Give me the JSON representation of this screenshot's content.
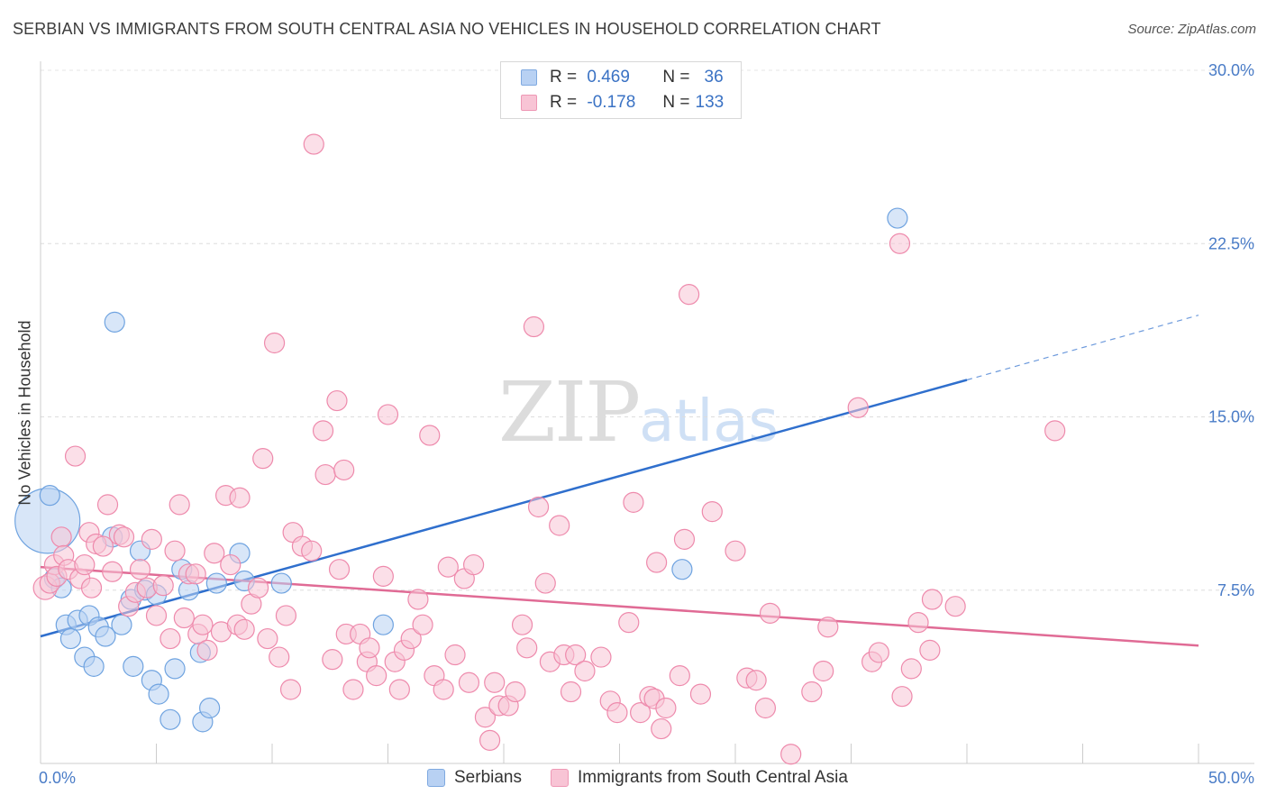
{
  "title": "SERBIAN VS IMMIGRANTS FROM SOUTH CENTRAL ASIA NO VEHICLES IN HOUSEHOLD CORRELATION CHART",
  "source": "Source: ZipAtlas.com",
  "watermark": {
    "zip": "ZIP",
    "atlas": "atlas"
  },
  "legend": {
    "rows": [
      {
        "r_label": "R =",
        "r_value": "0.469",
        "n_label": "N =",
        "n_value": "36",
        "color": "#a9c8f0"
      },
      {
        "r_label": "R =",
        "r_value": "-0.178",
        "n_label": "N =",
        "n_value": "133",
        "color": "#f7b6cb"
      }
    ]
  },
  "chart_data": {
    "type": "scatter",
    "ylabel": "No Vehicles in Household",
    "xlim": [
      0,
      50
    ],
    "ylim": [
      0,
      30
    ],
    "x_tick_labels": [
      "0.0%",
      "50.0%"
    ],
    "y_ticks": [
      7.5,
      15.0,
      22.5,
      30.0
    ],
    "y_tick_labels": [
      "7.5%",
      "15.0%",
      "22.5%",
      "30.0%"
    ],
    "grid": true,
    "legend_placement": "bottom",
    "series": [
      {
        "name": "Serbians",
        "color": "#6fa3e0",
        "fill": "#b8d1f3",
        "trend": {
          "x0": 0,
          "y0": 5.5,
          "x1": 40,
          "y1": 16.6,
          "dash_to_x": 50,
          "dash_to_y": 19.4,
          "color": "#2f6fcd"
        },
        "points": [
          [
            0.3,
            10.5
          ],
          [
            0.4,
            11.6
          ],
          [
            0.6,
            8.0
          ],
          [
            0.9,
            7.6
          ],
          [
            1.1,
            6.0
          ],
          [
            1.3,
            5.4
          ],
          [
            1.6,
            6.2
          ],
          [
            1.9,
            4.6
          ],
          [
            2.1,
            6.4
          ],
          [
            2.3,
            4.2
          ],
          [
            2.5,
            5.9
          ],
          [
            2.8,
            5.5
          ],
          [
            3.1,
            9.8
          ],
          [
            3.2,
            19.1
          ],
          [
            3.5,
            6.0
          ],
          [
            3.9,
            7.1
          ],
          [
            4.0,
            4.2
          ],
          [
            4.3,
            9.2
          ],
          [
            4.5,
            7.5
          ],
          [
            4.8,
            3.6
          ],
          [
            5.0,
            7.3
          ],
          [
            5.1,
            3.0
          ],
          [
            5.6,
            1.9
          ],
          [
            5.8,
            4.1
          ],
          [
            6.1,
            8.4
          ],
          [
            6.4,
            7.5
          ],
          [
            6.9,
            4.8
          ],
          [
            7.0,
            1.8
          ],
          [
            7.3,
            2.4
          ],
          [
            7.6,
            7.8
          ],
          [
            8.6,
            9.1
          ],
          [
            8.8,
            7.9
          ],
          [
            10.4,
            7.8
          ],
          [
            14.8,
            6.0
          ],
          [
            27.7,
            8.4
          ],
          [
            37.0,
            23.6
          ]
        ],
        "sizes": [
          36,
          11,
          11,
          11,
          11,
          11,
          11,
          11,
          11,
          11,
          11,
          11,
          11,
          11,
          11,
          11,
          11,
          11,
          11,
          11,
          11,
          11,
          11,
          11,
          11,
          11,
          11,
          11,
          11,
          11,
          11,
          11,
          11,
          11,
          11,
          11
        ]
      },
      {
        "name": "Immigrants from South Central Asia",
        "color": "#ee8aac",
        "fill": "#f8c4d5",
        "trend": {
          "x0": 0,
          "y0": 8.5,
          "x1": 50,
          "y1": 5.1,
          "color": "#e06b95"
        },
        "points": [
          [
            0.2,
            7.6
          ],
          [
            0.4,
            7.8
          ],
          [
            0.6,
            8.6
          ],
          [
            0.7,
            8.1
          ],
          [
            0.9,
            9.8
          ],
          [
            1.0,
            9.0
          ],
          [
            1.2,
            8.4
          ],
          [
            1.5,
            13.3
          ],
          [
            1.7,
            8.0
          ],
          [
            1.9,
            8.6
          ],
          [
            2.1,
            10.0
          ],
          [
            2.2,
            7.6
          ],
          [
            2.4,
            9.5
          ],
          [
            2.7,
            9.4
          ],
          [
            2.9,
            11.2
          ],
          [
            3.1,
            8.3
          ],
          [
            3.4,
            9.9
          ],
          [
            3.6,
            9.8
          ],
          [
            3.8,
            6.8
          ],
          [
            4.1,
            7.4
          ],
          [
            4.3,
            8.4
          ],
          [
            4.6,
            7.6
          ],
          [
            4.8,
            9.7
          ],
          [
            5.0,
            6.4
          ],
          [
            5.3,
            7.7
          ],
          [
            5.6,
            5.4
          ],
          [
            5.8,
            9.2
          ],
          [
            6.0,
            11.2
          ],
          [
            6.2,
            6.3
          ],
          [
            6.4,
            8.2
          ],
          [
            6.7,
            8.2
          ],
          [
            6.8,
            5.6
          ],
          [
            7.0,
            6.0
          ],
          [
            7.2,
            4.9
          ],
          [
            7.5,
            9.1
          ],
          [
            7.8,
            5.7
          ],
          [
            8.0,
            11.6
          ],
          [
            8.2,
            8.6
          ],
          [
            8.5,
            6.0
          ],
          [
            8.6,
            11.5
          ],
          [
            8.8,
            5.8
          ],
          [
            9.1,
            6.9
          ],
          [
            9.4,
            7.6
          ],
          [
            9.6,
            13.2
          ],
          [
            9.8,
            5.4
          ],
          [
            10.1,
            18.2
          ],
          [
            10.3,
            4.6
          ],
          [
            10.6,
            6.4
          ],
          [
            10.8,
            3.2
          ],
          [
            10.9,
            10.0
          ],
          [
            11.3,
            9.4
          ],
          [
            11.7,
            9.2
          ],
          [
            11.8,
            26.8
          ],
          [
            12.2,
            14.4
          ],
          [
            12.3,
            12.5
          ],
          [
            12.6,
            4.5
          ],
          [
            12.8,
            15.7
          ],
          [
            12.9,
            8.4
          ],
          [
            13.1,
            12.7
          ],
          [
            13.2,
            5.6
          ],
          [
            13.5,
            3.2
          ],
          [
            13.8,
            5.6
          ],
          [
            14.1,
            4.4
          ],
          [
            14.2,
            5.0
          ],
          [
            14.5,
            3.8
          ],
          [
            14.8,
            8.1
          ],
          [
            15.0,
            15.1
          ],
          [
            15.3,
            4.4
          ],
          [
            15.5,
            3.2
          ],
          [
            15.7,
            4.9
          ],
          [
            16.0,
            5.4
          ],
          [
            16.3,
            7.1
          ],
          [
            16.5,
            6.0
          ],
          [
            16.8,
            14.2
          ],
          [
            17.0,
            3.8
          ],
          [
            17.4,
            3.2
          ],
          [
            17.6,
            8.5
          ],
          [
            17.9,
            4.7
          ],
          [
            18.3,
            8.0
          ],
          [
            18.5,
            3.5
          ],
          [
            18.7,
            8.6
          ],
          [
            19.2,
            2.0
          ],
          [
            19.4,
            1.0
          ],
          [
            19.6,
            3.5
          ],
          [
            19.8,
            2.5
          ],
          [
            20.2,
            2.5
          ],
          [
            20.5,
            3.1
          ],
          [
            20.8,
            6.0
          ],
          [
            21.0,
            5.0
          ],
          [
            21.3,
            18.9
          ],
          [
            21.5,
            11.1
          ],
          [
            21.8,
            7.8
          ],
          [
            22.0,
            4.4
          ],
          [
            22.4,
            10.3
          ],
          [
            22.6,
            4.7
          ],
          [
            22.9,
            3.1
          ],
          [
            23.1,
            4.7
          ],
          [
            23.5,
            4.0
          ],
          [
            24.2,
            4.6
          ],
          [
            24.6,
            2.7
          ],
          [
            24.9,
            2.2
          ],
          [
            25.4,
            6.1
          ],
          [
            25.6,
            11.3
          ],
          [
            25.9,
            2.2
          ],
          [
            26.3,
            2.9
          ],
          [
            26.5,
            2.8
          ],
          [
            26.6,
            8.7
          ],
          [
            26.8,
            1.5
          ],
          [
            27.0,
            2.4
          ],
          [
            27.6,
            3.8
          ],
          [
            27.8,
            9.7
          ],
          [
            28.0,
            20.3
          ],
          [
            28.5,
            3.0
          ],
          [
            29.0,
            10.9
          ],
          [
            30.0,
            9.2
          ],
          [
            30.5,
            3.7
          ],
          [
            30.9,
            3.6
          ],
          [
            31.3,
            2.4
          ],
          [
            31.5,
            6.5
          ],
          [
            32.4,
            0.4
          ],
          [
            33.3,
            3.1
          ],
          [
            33.8,
            4.0
          ],
          [
            34.0,
            5.9
          ],
          [
            35.3,
            15.4
          ],
          [
            35.9,
            4.4
          ],
          [
            36.2,
            4.8
          ],
          [
            37.1,
            22.5
          ],
          [
            37.2,
            2.9
          ],
          [
            37.6,
            4.1
          ],
          [
            37.9,
            6.1
          ],
          [
            38.4,
            4.9
          ],
          [
            38.5,
            7.1
          ],
          [
            39.5,
            6.8
          ],
          [
            43.8,
            14.4
          ]
        ],
        "sizes_default": 11,
        "large_points": [
          [
            0.2,
            7.6,
            13
          ]
        ]
      }
    ]
  }
}
